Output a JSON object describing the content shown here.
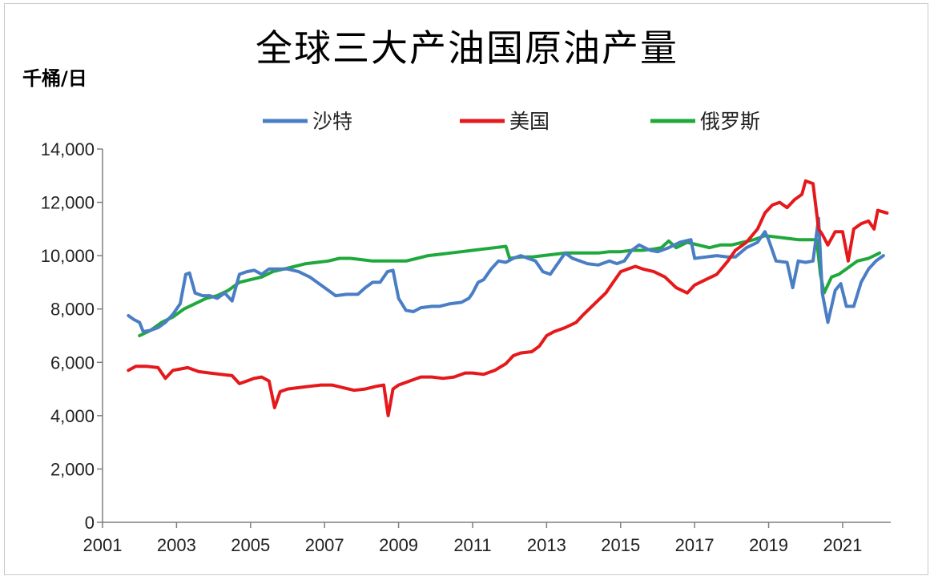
{
  "chart_data": {
    "type": "line",
    "title": "全球三大产油国原油产量",
    "ylabel": "千桶/日",
    "xlabel": "",
    "xlim": [
      2001,
      2022.3
    ],
    "ylim": [
      0,
      14000
    ],
    "x_ticks": [
      "2001",
      "2003",
      "2005",
      "2007",
      "2009",
      "2011",
      "2013",
      "2015",
      "2017",
      "2019",
      "2021"
    ],
    "y_ticks": [
      "0",
      "2,000",
      "4,000",
      "6,000",
      "8,000",
      "10,000",
      "12,000",
      "14,000"
    ],
    "grid": false,
    "legend_position": "top",
    "series": [
      {
        "name": "沙特",
        "color": "#4a7ec4",
        "points": [
          [
            2001.7,
            7750
          ],
          [
            2001.85,
            7600
          ],
          [
            2002.0,
            7500
          ],
          [
            2002.1,
            7150
          ],
          [
            2002.3,
            7200
          ],
          [
            2002.5,
            7300
          ],
          [
            2002.7,
            7500
          ],
          [
            2002.9,
            7800
          ],
          [
            2003.1,
            8200
          ],
          [
            2003.25,
            9300
          ],
          [
            2003.35,
            9350
          ],
          [
            2003.5,
            8600
          ],
          [
            2003.7,
            8500
          ],
          [
            2003.9,
            8500
          ],
          [
            2004.1,
            8400
          ],
          [
            2004.3,
            8600
          ],
          [
            2004.5,
            8300
          ],
          [
            2004.7,
            9300
          ],
          [
            2004.9,
            9400
          ],
          [
            2005.1,
            9450
          ],
          [
            2005.3,
            9300
          ],
          [
            2005.5,
            9500
          ],
          [
            2005.8,
            9500
          ],
          [
            2006.0,
            9500
          ],
          [
            2006.3,
            9400
          ],
          [
            2006.6,
            9200
          ],
          [
            2006.9,
            8900
          ],
          [
            2007.1,
            8700
          ],
          [
            2007.3,
            8500
          ],
          [
            2007.6,
            8550
          ],
          [
            2007.9,
            8550
          ],
          [
            2008.1,
            8800
          ],
          [
            2008.3,
            9000
          ],
          [
            2008.5,
            9000
          ],
          [
            2008.7,
            9400
          ],
          [
            2008.85,
            9450
          ],
          [
            2009.0,
            8400
          ],
          [
            2009.2,
            7950
          ],
          [
            2009.4,
            7900
          ],
          [
            2009.6,
            8050
          ],
          [
            2009.9,
            8100
          ],
          [
            2010.1,
            8100
          ],
          [
            2010.4,
            8200
          ],
          [
            2010.7,
            8250
          ],
          [
            2010.9,
            8400
          ],
          [
            2011.0,
            8600
          ],
          [
            2011.15,
            9000
          ],
          [
            2011.3,
            9100
          ],
          [
            2011.5,
            9500
          ],
          [
            2011.7,
            9800
          ],
          [
            2011.9,
            9750
          ],
          [
            2012.1,
            9900
          ],
          [
            2012.3,
            10000
          ],
          [
            2012.5,
            9900
          ],
          [
            2012.7,
            9800
          ],
          [
            2012.9,
            9400
          ],
          [
            2013.1,
            9300
          ],
          [
            2013.3,
            9700
          ],
          [
            2013.5,
            10100
          ],
          [
            2013.7,
            9900
          ],
          [
            2013.9,
            9800
          ],
          [
            2014.1,
            9700
          ],
          [
            2014.4,
            9650
          ],
          [
            2014.7,
            9800
          ],
          [
            2014.9,
            9700
          ],
          [
            2015.1,
            9800
          ],
          [
            2015.3,
            10200
          ],
          [
            2015.5,
            10400
          ],
          [
            2015.8,
            10200
          ],
          [
            2016.0,
            10150
          ],
          [
            2016.3,
            10300
          ],
          [
            2016.6,
            10500
          ],
          [
            2016.9,
            10600
          ],
          [
            2017.0,
            9900
          ],
          [
            2017.3,
            9950
          ],
          [
            2017.6,
            10000
          ],
          [
            2017.9,
            9950
          ],
          [
            2018.1,
            9950
          ],
          [
            2018.4,
            10300
          ],
          [
            2018.7,
            10500
          ],
          [
            2018.9,
            10900
          ],
          [
            2019.0,
            10600
          ],
          [
            2019.2,
            9800
          ],
          [
            2019.5,
            9750
          ],
          [
            2019.65,
            8800
          ],
          [
            2019.8,
            9800
          ],
          [
            2020.0,
            9750
          ],
          [
            2020.2,
            9800
          ],
          [
            2020.35,
            11400
          ],
          [
            2020.45,
            8600
          ],
          [
            2020.6,
            7500
          ],
          [
            2020.8,
            8700
          ],
          [
            2020.95,
            8950
          ],
          [
            2021.1,
            8100
          ],
          [
            2021.3,
            8100
          ],
          [
            2021.5,
            9000
          ],
          [
            2021.7,
            9500
          ],
          [
            2021.9,
            9800
          ],
          [
            2022.1,
            10000
          ]
        ]
      },
      {
        "name": "美国",
        "color": "#e5191b",
        "points": [
          [
            2001.7,
            5700
          ],
          [
            2001.9,
            5850
          ],
          [
            2002.2,
            5850
          ],
          [
            2002.5,
            5800
          ],
          [
            2002.7,
            5400
          ],
          [
            2002.9,
            5700
          ],
          [
            2003.1,
            5750
          ],
          [
            2003.3,
            5800
          ],
          [
            2003.6,
            5650
          ],
          [
            2003.9,
            5600
          ],
          [
            2004.2,
            5550
          ],
          [
            2004.5,
            5500
          ],
          [
            2004.7,
            5200
          ],
          [
            2004.9,
            5300
          ],
          [
            2005.1,
            5400
          ],
          [
            2005.3,
            5450
          ],
          [
            2005.5,
            5300
          ],
          [
            2005.65,
            4300
          ],
          [
            2005.8,
            4900
          ],
          [
            2006.0,
            5000
          ],
          [
            2006.3,
            5050
          ],
          [
            2006.6,
            5100
          ],
          [
            2006.9,
            5150
          ],
          [
            2007.2,
            5150
          ],
          [
            2007.5,
            5050
          ],
          [
            2007.8,
            4950
          ],
          [
            2008.1,
            5000
          ],
          [
            2008.4,
            5100
          ],
          [
            2008.6,
            5150
          ],
          [
            2008.72,
            4000
          ],
          [
            2008.85,
            5000
          ],
          [
            2009.0,
            5150
          ],
          [
            2009.3,
            5300
          ],
          [
            2009.6,
            5450
          ],
          [
            2009.9,
            5450
          ],
          [
            2010.2,
            5400
          ],
          [
            2010.5,
            5450
          ],
          [
            2010.8,
            5600
          ],
          [
            2011.0,
            5600
          ],
          [
            2011.3,
            5550
          ],
          [
            2011.6,
            5700
          ],
          [
            2011.9,
            5950
          ],
          [
            2012.1,
            6250
          ],
          [
            2012.3,
            6350
          ],
          [
            2012.6,
            6400
          ],
          [
            2012.8,
            6600
          ],
          [
            2013.0,
            7000
          ],
          [
            2013.2,
            7150
          ],
          [
            2013.5,
            7300
          ],
          [
            2013.8,
            7500
          ],
          [
            2014.0,
            7800
          ],
          [
            2014.3,
            8200
          ],
          [
            2014.6,
            8600
          ],
          [
            2014.8,
            9000
          ],
          [
            2015.0,
            9400
          ],
          [
            2015.2,
            9500
          ],
          [
            2015.4,
            9600
          ],
          [
            2015.6,
            9500
          ],
          [
            2015.9,
            9400
          ],
          [
            2016.2,
            9200
          ],
          [
            2016.5,
            8800
          ],
          [
            2016.8,
            8600
          ],
          [
            2017.0,
            8900
          ],
          [
            2017.3,
            9100
          ],
          [
            2017.6,
            9300
          ],
          [
            2017.9,
            9800
          ],
          [
            2018.1,
            10200
          ],
          [
            2018.4,
            10500
          ],
          [
            2018.7,
            11000
          ],
          [
            2018.9,
            11600
          ],
          [
            2019.1,
            11900
          ],
          [
            2019.3,
            12000
          ],
          [
            2019.5,
            11800
          ],
          [
            2019.7,
            12100
          ],
          [
            2019.9,
            12300
          ],
          [
            2020.0,
            12800
          ],
          [
            2020.2,
            12700
          ],
          [
            2020.35,
            11000
          ],
          [
            2020.45,
            10800
          ],
          [
            2020.6,
            10400
          ],
          [
            2020.8,
            10900
          ],
          [
            2021.0,
            10900
          ],
          [
            2021.15,
            9800
          ],
          [
            2021.3,
            11000
          ],
          [
            2021.5,
            11200
          ],
          [
            2021.7,
            11300
          ],
          [
            2021.85,
            11000
          ],
          [
            2021.95,
            11700
          ],
          [
            2022.2,
            11600
          ]
        ]
      },
      {
        "name": "俄罗斯",
        "color": "#1fa83b",
        "points": [
          [
            2002.0,
            7000
          ],
          [
            2002.3,
            7200
          ],
          [
            2002.6,
            7500
          ],
          [
            2002.9,
            7700
          ],
          [
            2003.2,
            8000
          ],
          [
            2003.5,
            8200
          ],
          [
            2003.8,
            8400
          ],
          [
            2004.1,
            8500
          ],
          [
            2004.4,
            8700
          ],
          [
            2004.7,
            9000
          ],
          [
            2005.0,
            9100
          ],
          [
            2005.3,
            9200
          ],
          [
            2005.6,
            9400
          ],
          [
            2005.9,
            9500
          ],
          [
            2006.2,
            9600
          ],
          [
            2006.5,
            9700
          ],
          [
            2006.8,
            9750
          ],
          [
            2007.1,
            9800
          ],
          [
            2007.4,
            9900
          ],
          [
            2007.7,
            9900
          ],
          [
            2008.0,
            9850
          ],
          [
            2008.3,
            9800
          ],
          [
            2008.6,
            9800
          ],
          [
            2008.9,
            9800
          ],
          [
            2009.2,
            9800
          ],
          [
            2009.5,
            9900
          ],
          [
            2009.8,
            10000
          ],
          [
            2010.1,
            10050
          ],
          [
            2010.4,
            10100
          ],
          [
            2010.7,
            10150
          ],
          [
            2011.0,
            10200
          ],
          [
            2011.3,
            10250
          ],
          [
            2011.6,
            10300
          ],
          [
            2011.9,
            10350
          ],
          [
            2012.0,
            9900
          ],
          [
            2012.3,
            9950
          ],
          [
            2012.6,
            9950
          ],
          [
            2012.9,
            10000
          ],
          [
            2013.2,
            10050
          ],
          [
            2013.5,
            10100
          ],
          [
            2013.8,
            10100
          ],
          [
            2014.1,
            10100
          ],
          [
            2014.4,
            10100
          ],
          [
            2014.7,
            10150
          ],
          [
            2015.0,
            10150
          ],
          [
            2015.3,
            10200
          ],
          [
            2015.6,
            10200
          ],
          [
            2015.9,
            10250
          ],
          [
            2016.1,
            10300
          ],
          [
            2016.3,
            10550
          ],
          [
            2016.5,
            10300
          ],
          [
            2016.8,
            10500
          ],
          [
            2017.1,
            10400
          ],
          [
            2017.4,
            10300
          ],
          [
            2017.7,
            10400
          ],
          [
            2018.0,
            10400
          ],
          [
            2018.3,
            10500
          ],
          [
            2018.6,
            10600
          ],
          [
            2018.9,
            10750
          ],
          [
            2019.2,
            10700
          ],
          [
            2019.5,
            10650
          ],
          [
            2019.8,
            10600
          ],
          [
            2020.1,
            10600
          ],
          [
            2020.3,
            10600
          ],
          [
            2020.4,
            9300
          ],
          [
            2020.5,
            8600
          ],
          [
            2020.7,
            9200
          ],
          [
            2020.9,
            9300
          ],
          [
            2021.1,
            9500
          ],
          [
            2021.4,
            9800
          ],
          [
            2021.7,
            9900
          ],
          [
            2022.0,
            10100
          ]
        ]
      }
    ]
  }
}
